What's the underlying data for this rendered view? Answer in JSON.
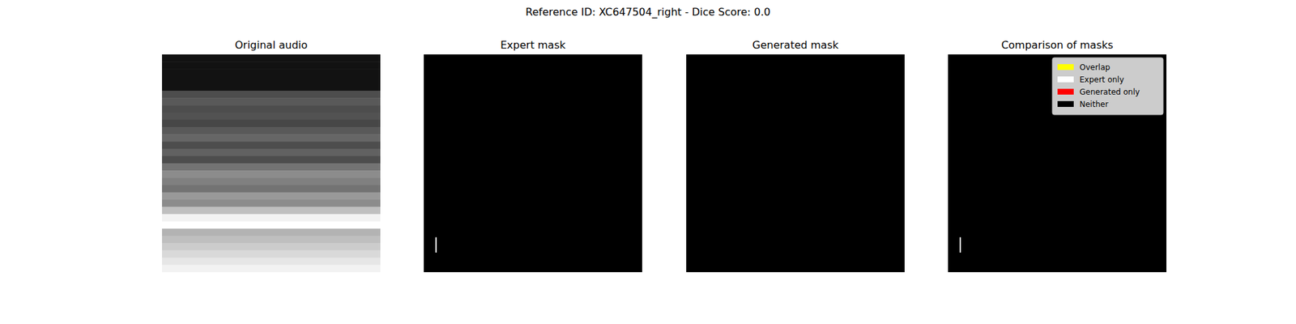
{
  "chart_data": {
    "type": "image_grid",
    "title": "Reference ID: XC647504_right - Dice Score: 0.0",
    "panels": [
      {
        "type": "heatmap",
        "title": "Original audio",
        "tick_labels": false,
        "cell_range": [
          0,
          1
        ],
        "cells": [
          0.07,
          0.07,
          0.07,
          0.07,
          0.07,
          0.3,
          0.35,
          0.3,
          0.32,
          0.28,
          0.35,
          0.4,
          0.3,
          0.38,
          0.3,
          0.45,
          0.55,
          0.5,
          0.45,
          0.6,
          0.55,
          0.75,
          0.95,
          1.0,
          0.7,
          0.75,
          0.8,
          0.85,
          0.9,
          0.95
        ]
      },
      {
        "type": "mask",
        "title": "Expert mask",
        "tick_labels": false,
        "xlim": [
          0,
          1
        ],
        "ylim": [
          0,
          1
        ],
        "color": "#ffffff",
        "regions": [
          {
            "x": [
              0.053,
              0.059
            ],
            "y": [
              0.84,
              0.91
            ]
          }
        ]
      },
      {
        "type": "mask",
        "title": "Generated mask",
        "tick_labels": false,
        "xlim": [
          0,
          1
        ],
        "ylim": [
          0,
          1
        ],
        "color": "#ffffff",
        "regions": []
      },
      {
        "type": "comparison",
        "title": "Comparison of masks",
        "tick_labels": false,
        "xlim": [
          0,
          1
        ],
        "ylim": [
          0,
          1
        ],
        "legend": "upper right",
        "series": [
          {
            "name": "Overlap",
            "color": "#ffff00",
            "regions": []
          },
          {
            "name": "Expert only",
            "color": "#ffffff",
            "regions": [
              {
                "x": [
                  0.053,
                  0.059
                ],
                "y": [
                  0.84,
                  0.91
                ]
              }
            ]
          },
          {
            "name": "Generated only",
            "color": "#ff0000",
            "regions": []
          },
          {
            "name": "Neither",
            "color": "#000000",
            "regions": []
          }
        ]
      }
    ]
  }
}
